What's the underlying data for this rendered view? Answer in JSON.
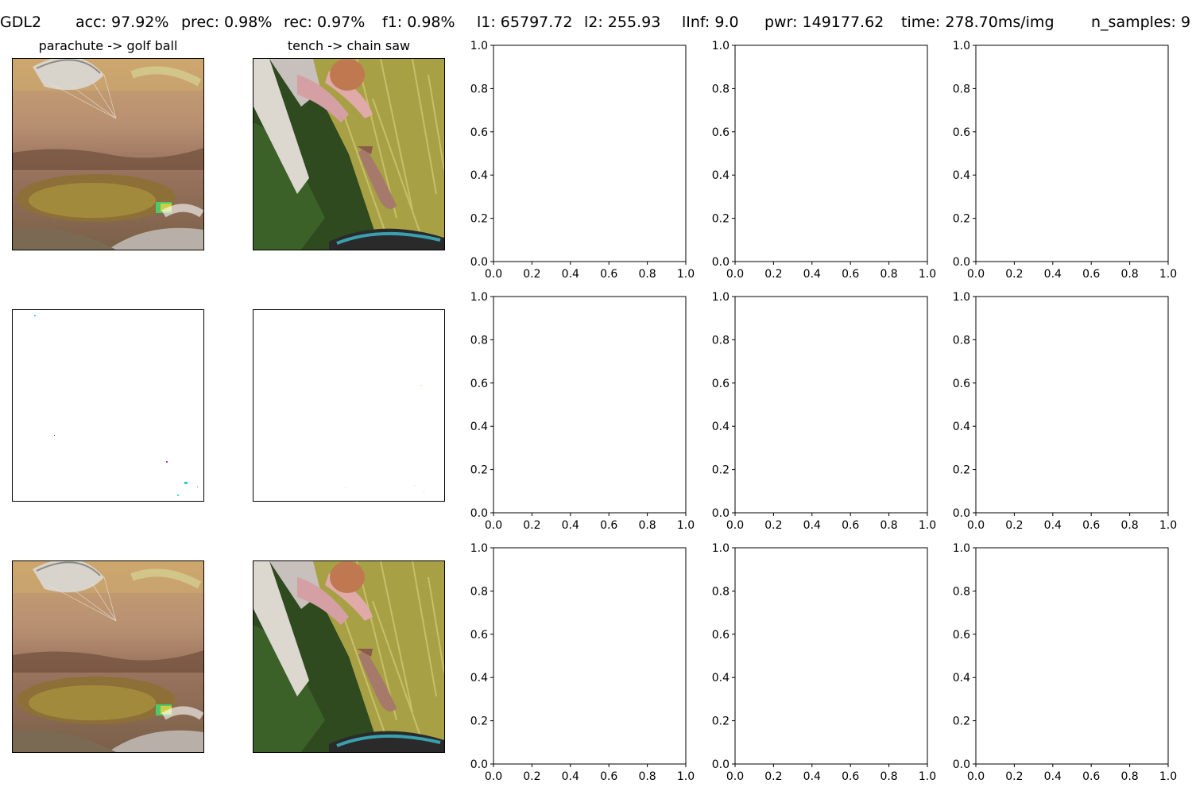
{
  "header": {
    "method": "GDL2",
    "stats": [
      {
        "name": "acc",
        "text": "acc: 97.92%"
      },
      {
        "name": "prec",
        "text": "prec: 0.98%"
      },
      {
        "name": "rec",
        "text": "rec: 0.97%"
      },
      {
        "name": "f1",
        "text": "f1: 0.98%"
      },
      {
        "name": "l1",
        "text": "l1: 65797.72"
      },
      {
        "name": "l2",
        "text": "l2: 255.93"
      },
      {
        "name": "linf",
        "text": "lInf: 9.0"
      },
      {
        "name": "pwr",
        "text": "pwr: 149177.62"
      },
      {
        "name": "time",
        "text": "time: 278.70ms/img"
      },
      {
        "name": "n-samples",
        "text": "n_samples: 9"
      }
    ]
  },
  "image_columns": [
    {
      "title": "parachute -> golf ball",
      "rows": [
        {
          "kind": "original",
          "scene": "parachute"
        },
        {
          "kind": "perturbation"
        },
        {
          "kind": "adversarial",
          "scene": "parachute"
        }
      ]
    },
    {
      "title": "tench -> chain saw",
      "rows": [
        {
          "kind": "original",
          "scene": "tench"
        },
        {
          "kind": "perturbation"
        },
        {
          "kind": "adversarial",
          "scene": "tench"
        }
      ]
    }
  ],
  "chart_data": {
    "type": "scatter",
    "description_of_empty_axes": "9 empty axes (3 rows x 3 columns) with default ranges",
    "xlim": [
      0.0,
      1.0
    ],
    "ylim": [
      0.0,
      1.0
    ],
    "xticks": [
      "0.0",
      "0.2",
      "0.4",
      "0.6",
      "0.8",
      "1.0"
    ],
    "yticks": [
      "0.0",
      "0.2",
      "0.4",
      "0.6",
      "0.8",
      "1.0"
    ],
    "series": [],
    "grid": false
  }
}
